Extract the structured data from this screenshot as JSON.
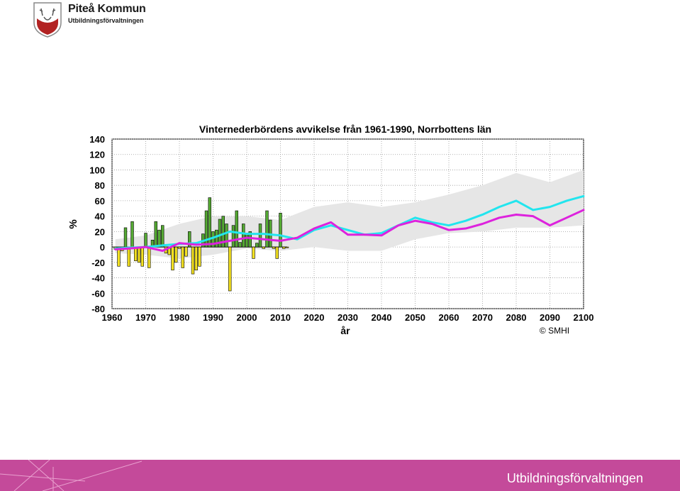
{
  "header": {
    "org_name": "Piteå Kommun",
    "org_sub": "Utbildningsförvaltningen"
  },
  "footer": {
    "label": "Utbildningsförvaltningen",
    "color": "#c44a9a"
  },
  "chart_data": {
    "type": "bar+line",
    "title": "Vinternederbördens avvikelse från 1961-1990, Norrbottens län",
    "xlabel": "år",
    "ylabel": "%",
    "credit": "© SMHI",
    "xlim": [
      1960,
      2100
    ],
    "ylim": [
      -80,
      140
    ],
    "xticks": [
      1960,
      1970,
      1980,
      1990,
      2000,
      2010,
      2020,
      2030,
      2040,
      2050,
      2060,
      2070,
      2080,
      2090,
      2100
    ],
    "yticks": [
      -80,
      -60,
      -40,
      -20,
      0,
      20,
      40,
      60,
      80,
      100,
      120,
      140
    ],
    "grid": true,
    "colors": {
      "positive": "#55aa33",
      "negative": "#f2e020",
      "cyan": "#22e5ee",
      "magenta": "#dd22dd",
      "band": "#e6e6e6"
    },
    "observed": {
      "years": [
        1961,
        1962,
        1963,
        1964,
        1965,
        1966,
        1967,
        1968,
        1969,
        1970,
        1971,
        1972,
        1973,
        1974,
        1975,
        1976,
        1977,
        1978,
        1979,
        1980,
        1981,
        1982,
        1983,
        1984,
        1985,
        1986,
        1987,
        1988,
        1989,
        1990,
        1991,
        1992,
        1993,
        1994,
        1995,
        1996,
        1997,
        1998,
        1999,
        2000,
        2001,
        2002,
        2003,
        2004,
        2005,
        2006,
        2007,
        2008,
        2009,
        2010,
        2011,
        2012
      ],
      "values": [
        -3,
        -25,
        -5,
        25,
        -25,
        33,
        -18,
        -20,
        -25,
        18,
        -27,
        9,
        33,
        22,
        28,
        -8,
        -10,
        -30,
        -20,
        -2,
        -27,
        -12,
        20,
        -35,
        -30,
        -25,
        17,
        47,
        64,
        20,
        22,
        36,
        40,
        30,
        -57,
        28,
        47,
        6,
        30,
        18,
        20,
        -15,
        5,
        30,
        -2,
        47,
        35,
        -2,
        -15,
        44,
        -2,
        -1
      ]
    },
    "series": [
      {
        "color_key": "cyan",
        "x": [
          1961,
          1965,
          1970,
          1975,
          1980,
          1985,
          1990,
          1995,
          2000,
          2005,
          2010,
          2015,
          2020,
          2025,
          2030,
          2035,
          2040,
          2045,
          2050,
          2055,
          2060,
          2065,
          2070,
          2075,
          2080,
          2085,
          2090,
          2095,
          2100
        ],
        "y": [
          -2,
          -1,
          0,
          2,
          4,
          5,
          12,
          20,
          17,
          17,
          15,
          10,
          22,
          28,
          22,
          16,
          18,
          28,
          38,
          32,
          28,
          34,
          42,
          52,
          60,
          48,
          52,
          60,
          66
        ]
      },
      {
        "color_key": "magenta",
        "x": [
          1961,
          1965,
          1970,
          1975,
          1980,
          1985,
          1990,
          1995,
          2000,
          2005,
          2010,
          2015,
          2020,
          2025,
          2030,
          2035,
          2040,
          2045,
          2050,
          2055,
          2060,
          2065,
          2070,
          2075,
          2080,
          2085,
          2090,
          2095,
          2100
        ],
        "y": [
          -3,
          -2,
          0,
          -5,
          5,
          3,
          4,
          8,
          12,
          10,
          8,
          12,
          24,
          32,
          16,
          16,
          15,
          28,
          34,
          30,
          22,
          24,
          30,
          38,
          42,
          40,
          28,
          38,
          48
        ]
      }
    ],
    "band": {
      "x": [
        1961,
        1970,
        1980,
        1990,
        2000,
        2010,
        2020,
        2030,
        2040,
        2050,
        2060,
        2070,
        2080,
        2090,
        2100
      ],
      "upper": [
        10,
        15,
        30,
        40,
        40,
        35,
        52,
        58,
        52,
        58,
        68,
        80,
        96,
        84,
        100
      ],
      "lower": [
        -8,
        -10,
        -15,
        -10,
        -2,
        -5,
        0,
        -5,
        -5,
        10,
        18,
        20,
        25,
        25,
        28
      ]
    }
  }
}
